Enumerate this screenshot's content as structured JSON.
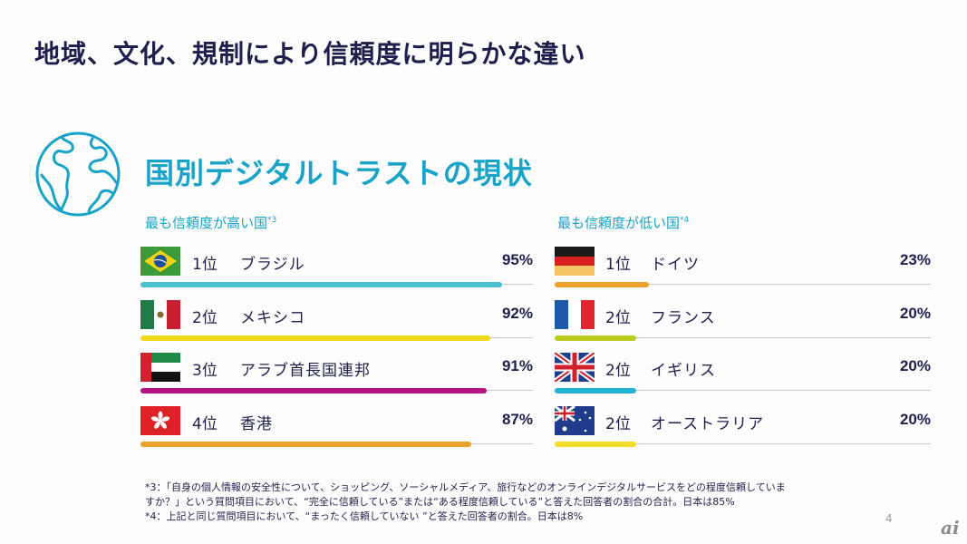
{
  "title": "地域、文化、規制により信頼度に明らかな違い",
  "subtitle": "国別デジタルトラストの現状",
  "high": {
    "heading": "最も信頼度が高い国",
    "note_ref": "*3",
    "items": [
      {
        "rank": "1位",
        "country": "ブラジル",
        "percent_label": "95%",
        "value": 95,
        "flag": "brazil-flag",
        "color": "#4bbfd2"
      },
      {
        "rank": "2位",
        "country": "メキシコ",
        "percent_label": "92%",
        "value": 92,
        "flag": "mexico-flag",
        "color": "#f2d81a"
      },
      {
        "rank": "3位",
        "country": "アラブ首長国連邦",
        "percent_label": "91%",
        "value": 91,
        "flag": "uae-flag",
        "color": "#b31580"
      },
      {
        "rank": "4位",
        "country": "香港",
        "percent_label": "87%",
        "value": 87,
        "flag": "hongkong-flag",
        "color": "#eba12a"
      }
    ]
  },
  "low": {
    "heading": "最も信頼度が低い国",
    "note_ref": "*4",
    "items": [
      {
        "rank": "1位",
        "country": "ドイツ",
        "percent_label": "23%",
        "value": 23,
        "flag": "germany-flag",
        "color": "#eba12a"
      },
      {
        "rank": "2位",
        "country": "フランス",
        "percent_label": "20%",
        "value": 20,
        "flag": "france-flag",
        "color": "#b9cc1e"
      },
      {
        "rank": "2位",
        "country": "イギリス",
        "percent_label": "20%",
        "value": 20,
        "flag": "uk-flag",
        "color": "#23b3d3"
      },
      {
        "rank": "2位",
        "country": "オーストラリア",
        "percent_label": "20%",
        "value": 20,
        "flag": "australia-flag",
        "color": "#f5dc2a"
      }
    ]
  },
  "footnotes": [
    "*3：「自身の個人情報の安全性について、ショッピング、ソーシャルメディア、旅行などのオンラインデジタルサービスをどの程度信頼していま",
    "すか？」という質問項目において、“完全に信頼している”または“ある程度信頼している”と答えた回答者の割合の合計。日本は85%",
    "*4：上記と同じ質問項目において、“まったく信頼していない ”と答えた回答者の割合。日本は8%"
  ],
  "page_number": "4",
  "logo": "ai"
}
